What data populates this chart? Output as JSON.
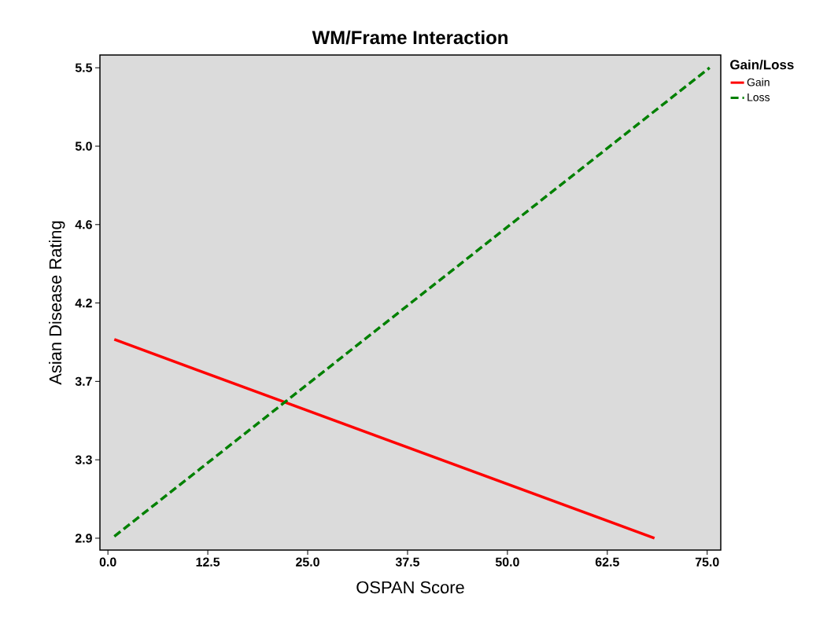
{
  "chart_data": {
    "type": "line",
    "title": "WM/Frame Interaction",
    "xlabel": "OSPAN Score",
    "ylabel": "Asian Disease Rating",
    "legend_title": "Gain/Loss",
    "series": [
      {
        "name": "Gain",
        "color": "#ff0000",
        "line_style": "solid",
        "x": [
          0.8,
          68.4
        ],
        "values": [
          3.97,
          2.88
        ]
      },
      {
        "name": "Loss",
        "color": "#008000",
        "line_style": "dashed",
        "x": [
          0.8,
          75.3
        ],
        "values": [
          2.89,
          5.46
        ]
      }
    ],
    "xlim": [
      -1,
      76.7
    ],
    "ylim": [
      2.815,
      5.53
    ],
    "xticks": [
      {
        "value": 0,
        "label": "0.0"
      },
      {
        "value": 12.5,
        "label": "12.5"
      },
      {
        "value": 25,
        "label": "25.0"
      },
      {
        "value": 37.5,
        "label": "37.5"
      },
      {
        "value": 50,
        "label": "50.0"
      },
      {
        "value": 62.5,
        "label": "62.5"
      },
      {
        "value": 75,
        "label": "75.0"
      }
    ],
    "yticks": [
      {
        "value": 2.88,
        "label": "2.9"
      },
      {
        "value": 3.31,
        "label": "3.3"
      },
      {
        "value": 3.74,
        "label": "3.7"
      },
      {
        "value": 4.17,
        "label": "4.2"
      },
      {
        "value": 4.6,
        "label": "4.6"
      },
      {
        "value": 5.03,
        "label": "5.0"
      },
      {
        "value": 5.46,
        "label": "5.5"
      }
    ],
    "grid": false,
    "legend": "top right",
    "marker": "none"
  }
}
